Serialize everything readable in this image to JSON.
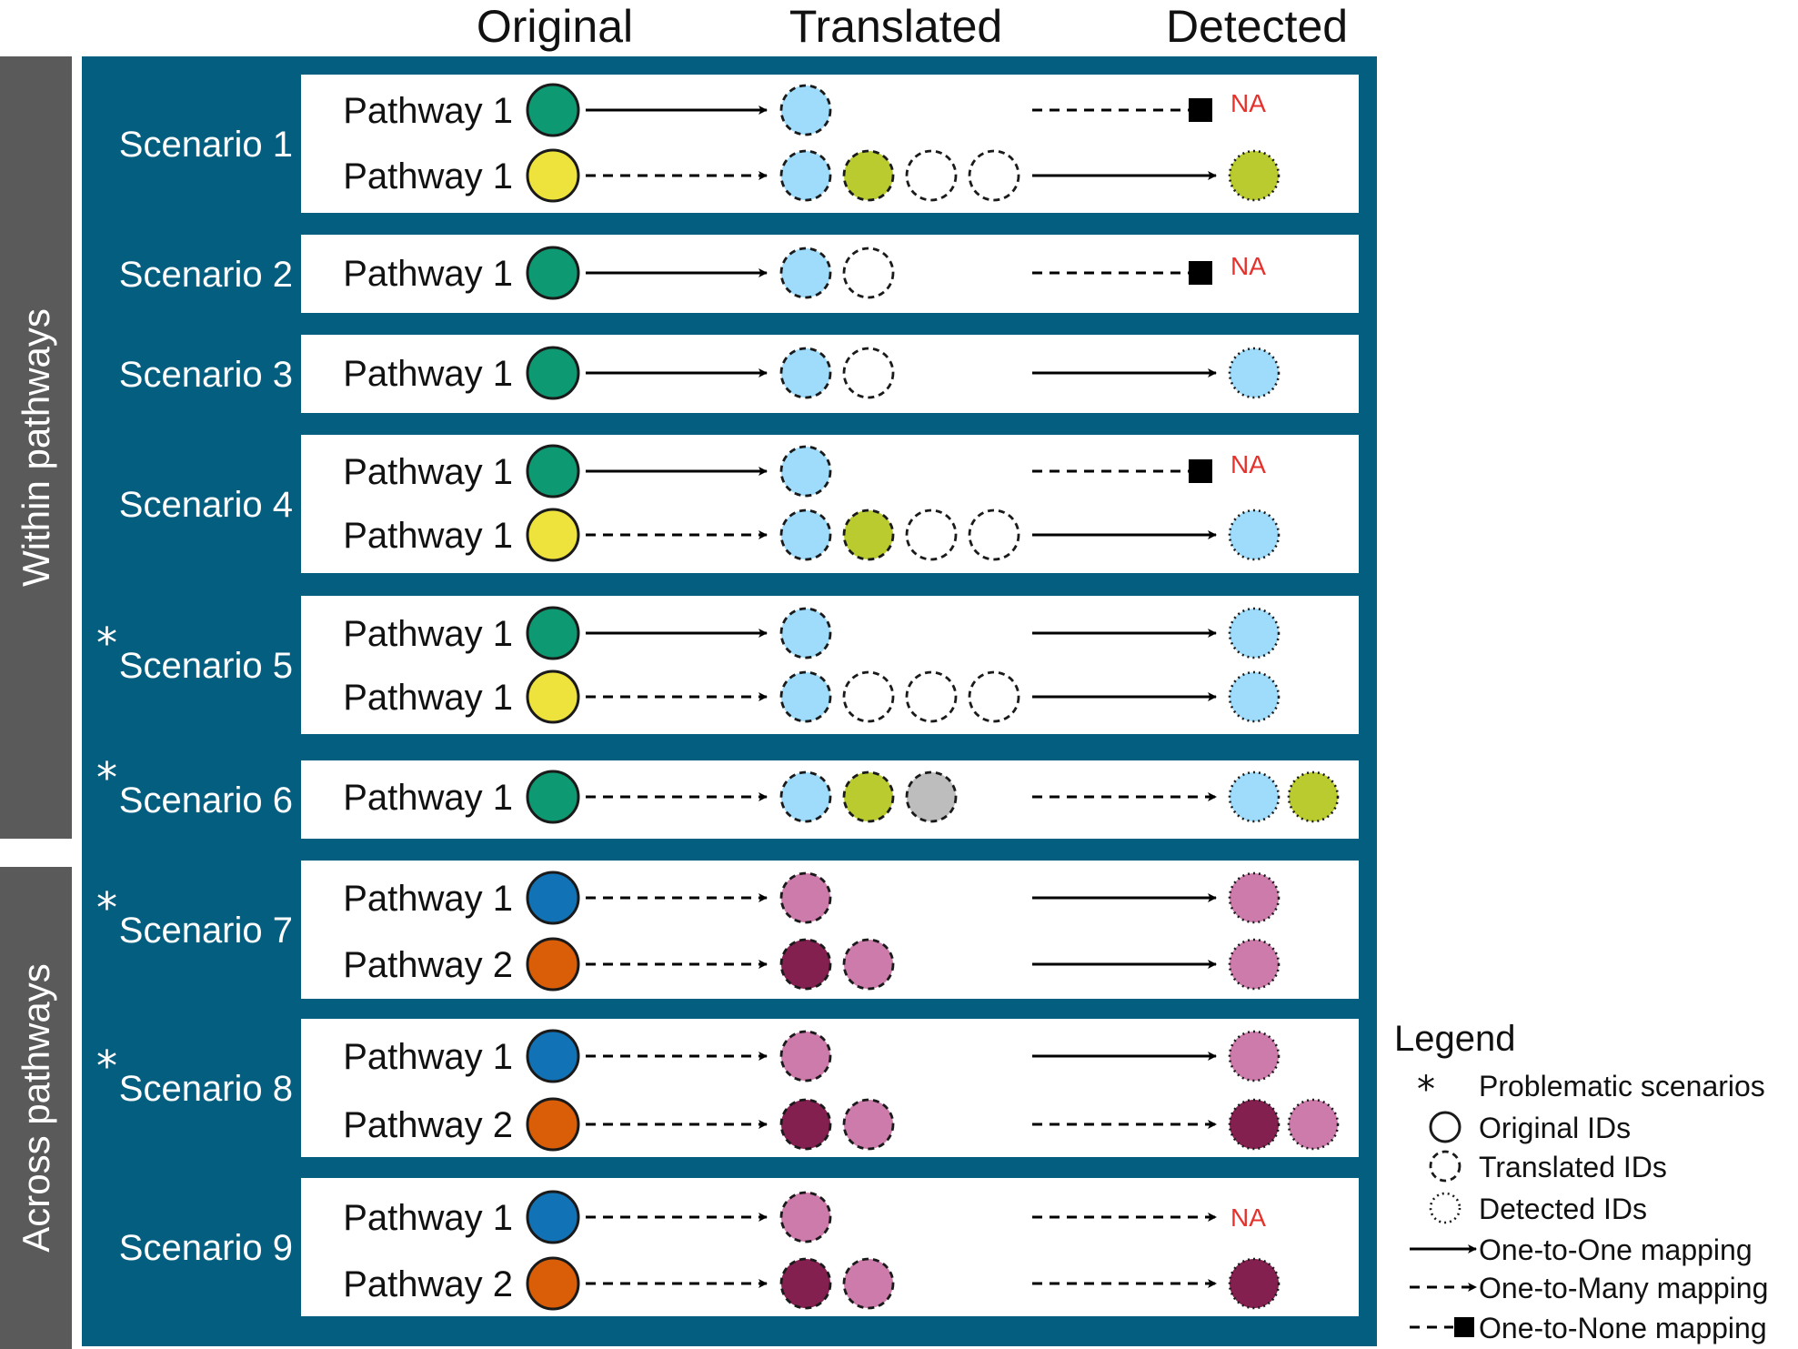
{
  "header": {
    "original": "Original",
    "translated": "Translated",
    "detected": "Detected"
  },
  "groups": {
    "within": "Within pathways",
    "across": "Across pathways"
  },
  "colors": {
    "panel": "#045e80",
    "sidebar": "#5a5a5a",
    "green": "#0d9a73",
    "yellow": "#eee23c",
    "blue": "#1173b6",
    "orange": "#d95e07",
    "lightblue": "#9fdcfb",
    "lime": "#b9cb2e",
    "gray": "#bdbdbd",
    "pink": "#cd7bab",
    "maroon": "#84204f",
    "na": "#e5322d"
  },
  "na_text": "NA",
  "scenarios": [
    {
      "label": "Scenario 1",
      "problematic": false,
      "rows": [
        {
          "pathway": "Pathway 1",
          "original": "green",
          "map1": "one-to-one",
          "translated": [
            "lightblue"
          ],
          "map2": "one-to-none",
          "detected": []
        },
        {
          "pathway": "Pathway 1",
          "original": "yellow",
          "map1": "one-to-many",
          "translated": [
            "lightblue",
            "lime",
            "empty",
            "empty"
          ],
          "map2": "one-to-one",
          "detected": [
            "lime"
          ]
        }
      ]
    },
    {
      "label": "Scenario 2",
      "problematic": false,
      "rows": [
        {
          "pathway": "Pathway 1",
          "original": "green",
          "map1": "one-to-one",
          "translated": [
            "lightblue",
            "empty"
          ],
          "map2": "one-to-none",
          "detected": []
        }
      ]
    },
    {
      "label": "Scenario 3",
      "problematic": false,
      "rows": [
        {
          "pathway": "Pathway 1",
          "original": "green",
          "map1": "one-to-one",
          "translated": [
            "lightblue",
            "empty"
          ],
          "map2": "one-to-one",
          "detected": [
            "lightblue"
          ]
        }
      ]
    },
    {
      "label": "Scenario 4",
      "problematic": false,
      "rows": [
        {
          "pathway": "Pathway 1",
          "original": "green",
          "map1": "one-to-one",
          "translated": [
            "lightblue"
          ],
          "map2": "one-to-none",
          "detected": []
        },
        {
          "pathway": "Pathway 1",
          "original": "yellow",
          "map1": "one-to-many",
          "translated": [
            "lightblue",
            "lime",
            "empty",
            "empty"
          ],
          "map2": "one-to-one",
          "detected": [
            "lightblue"
          ]
        }
      ]
    },
    {
      "label": "Scenario 5",
      "problematic": true,
      "rows": [
        {
          "pathway": "Pathway 1",
          "original": "green",
          "map1": "one-to-one",
          "translated": [
            "lightblue"
          ],
          "map2": "one-to-one",
          "detected": [
            "lightblue"
          ]
        },
        {
          "pathway": "Pathway 1",
          "original": "yellow",
          "map1": "one-to-many",
          "translated": [
            "lightblue",
            "empty",
            "empty",
            "empty"
          ],
          "map2": "one-to-one",
          "detected": [
            "lightblue"
          ]
        }
      ]
    },
    {
      "label": "Scenario 6",
      "problematic": true,
      "rows": [
        {
          "pathway": "Pathway 1",
          "original": "green",
          "map1": "one-to-many",
          "translated": [
            "lightblue",
            "lime",
            "gray"
          ],
          "map2": "one-to-many",
          "detected": [
            "lightblue",
            "lime"
          ]
        }
      ]
    },
    {
      "label": "Scenario 7",
      "problematic": true,
      "rows": [
        {
          "pathway": "Pathway 1",
          "original": "blue",
          "map1": "one-to-many",
          "translated": [
            "pink"
          ],
          "map2": "one-to-one",
          "detected": [
            "pink"
          ]
        },
        {
          "pathway": "Pathway 2",
          "original": "orange",
          "map1": "one-to-many",
          "translated": [
            "maroon",
            "pink"
          ],
          "map2": "one-to-one",
          "detected": [
            "pink"
          ]
        }
      ]
    },
    {
      "label": "Scenario 8",
      "problematic": true,
      "rows": [
        {
          "pathway": "Pathway 1",
          "original": "blue",
          "map1": "one-to-many",
          "translated": [
            "pink"
          ],
          "map2": "one-to-one",
          "detected": [
            "pink"
          ]
        },
        {
          "pathway": "Pathway 2",
          "original": "orange",
          "map1": "one-to-many",
          "translated": [
            "maroon",
            "pink"
          ],
          "map2": "one-to-many",
          "detected": [
            "maroon",
            "pink"
          ]
        }
      ]
    },
    {
      "label": "Scenario 9",
      "problematic": false,
      "rows": [
        {
          "pathway": "Pathway 1",
          "original": "blue",
          "map1": "one-to-many",
          "translated": [
            "pink"
          ],
          "map2": "one-to-many-na",
          "detected": []
        },
        {
          "pathway": "Pathway 2",
          "original": "orange",
          "map1": "one-to-many",
          "translated": [
            "maroon",
            "pink"
          ],
          "map2": "one-to-many",
          "detected": [
            "maroon"
          ]
        }
      ]
    }
  ],
  "legend": {
    "title": "Legend",
    "items": [
      {
        "kind": "star",
        "label": "Problematic scenarios"
      },
      {
        "kind": "original",
        "label": "Original IDs"
      },
      {
        "kind": "translated",
        "label": "Translated IDs"
      },
      {
        "kind": "detected",
        "label": "Detected IDs"
      },
      {
        "kind": "one-to-one",
        "label": "One-to-One mapping"
      },
      {
        "kind": "one-to-many",
        "label": "One-to-Many mapping"
      },
      {
        "kind": "one-to-none",
        "label": "One-to-None mapping"
      }
    ]
  }
}
